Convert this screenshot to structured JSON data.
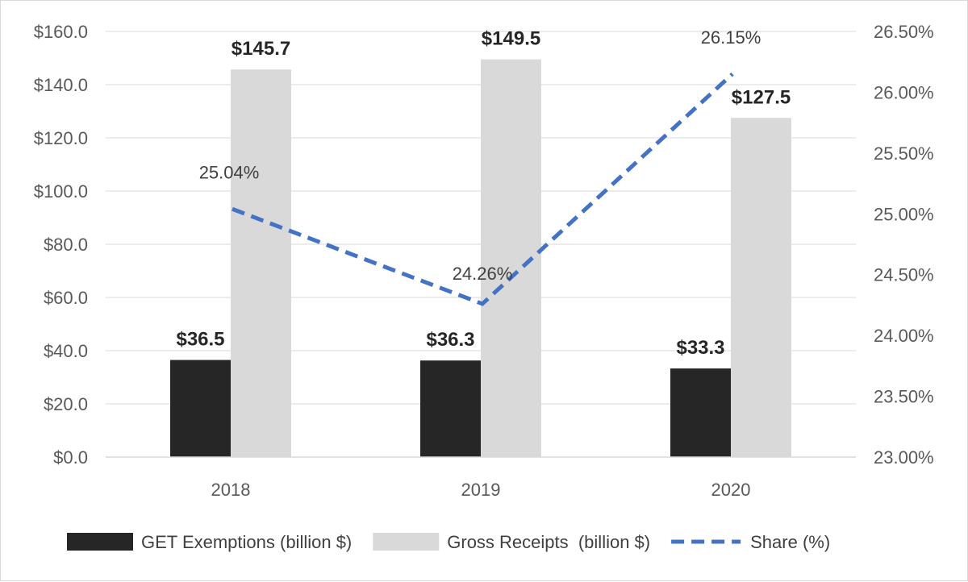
{
  "chart_data": {
    "type": "bar",
    "categories": [
      "2018",
      "2019",
      "2020"
    ],
    "series": [
      {
        "name": "GET Exemptions (billion $)",
        "kind": "bar",
        "axis": "left",
        "color": "#262626",
        "values": [
          36.5,
          36.3,
          33.3
        ],
        "labels": [
          "$36.5",
          "$36.3",
          "$33.3"
        ]
      },
      {
        "name": "Gross Receipts  (billion $)",
        "kind": "bar",
        "axis": "left",
        "color": "#d9d9d9",
        "values": [
          145.7,
          149.5,
          127.5
        ],
        "labels": [
          "$145.7",
          "$149.5",
          "$127.5"
        ]
      },
      {
        "name": "Share (%)",
        "kind": "line",
        "style": "dashed",
        "axis": "right",
        "color": "#4472c4",
        "values": [
          25.04,
          24.26,
          26.15
        ],
        "labels": [
          "25.04%",
          "24.26%",
          "26.15%"
        ]
      }
    ],
    "ylim": [
      0,
      160
    ],
    "y2lim": [
      23.0,
      26.5
    ],
    "yticks": [
      "$0.0",
      "$20.0",
      "$40.0",
      "$60.0",
      "$80.0",
      "$100.0",
      "$120.0",
      "$140.0",
      "$160.0"
    ],
    "y2ticks": [
      "23.00%",
      "23.50%",
      "24.00%",
      "24.50%",
      "25.00%",
      "25.50%",
      "26.00%",
      "26.50%"
    ],
    "grid": true,
    "legend_position": "bottom"
  }
}
